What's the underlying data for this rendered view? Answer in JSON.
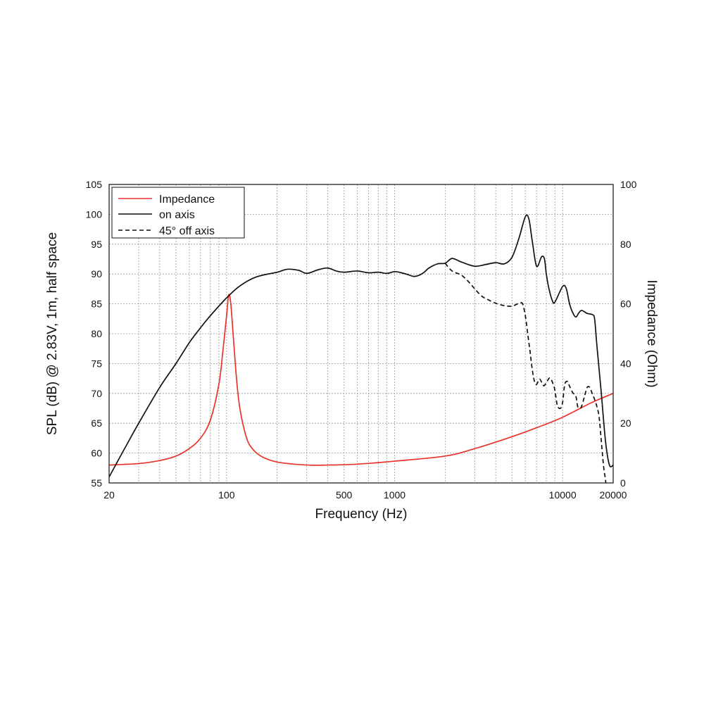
{
  "chart_data": {
    "type": "line",
    "xlabel": "Frequency (Hz)",
    "ylabel": "SPL (dB) @ 2.83V, 1m, half space",
    "y2label": "Impedance (Ohm)",
    "x_scale": "log",
    "xlim": [
      20,
      20000
    ],
    "ylim": [
      55,
      105
    ],
    "y2lim": [
      0,
      100
    ],
    "grid": true,
    "legend_position": "top-left",
    "x_tick_labels": [
      "20",
      "100",
      "500",
      "1000",
      "10000",
      "20000"
    ],
    "x_ticks": [
      20,
      100,
      500,
      1000,
      10000,
      20000
    ],
    "y_ticks": [
      55,
      60,
      65,
      70,
      75,
      80,
      85,
      90,
      95,
      100,
      105
    ],
    "y2_ticks": [
      0,
      20,
      40,
      60,
      80,
      100
    ],
    "series": [
      {
        "name": "Impedance",
        "axis": "right",
        "color": "#e8332a",
        "dash": "solid",
        "x": [
          20,
          30,
          40,
          50,
          60,
          70,
          80,
          90,
          95,
          100,
          103,
          106,
          110,
          115,
          120,
          130,
          140,
          160,
          200,
          300,
          400,
          600,
          1000,
          2000,
          3000,
          5000,
          7000,
          10000,
          15000,
          20000
        ],
        "y": [
          6,
          6.5,
          7.5,
          9,
          11.5,
          15,
          21,
          33,
          44,
          56,
          63,
          60,
          48,
          34,
          25,
          16,
          12,
          9,
          7,
          6,
          6,
          6.3,
          7.3,
          9,
          11.5,
          15.5,
          18.5,
          22,
          27,
          30
        ]
      },
      {
        "name": "on axis",
        "axis": "left",
        "color": "#111111",
        "dash": "solid",
        "x": [
          20,
          25,
          30,
          40,
          50,
          60,
          70,
          80,
          100,
          120,
          150,
          200,
          230,
          270,
          300,
          350,
          400,
          450,
          500,
          600,
          700,
          800,
          900,
          1000,
          1100,
          1200,
          1300,
          1400,
          1500,
          1600,
          1800,
          2000,
          2200,
          2500,
          3000,
          3500,
          4000,
          4500,
          5000,
          5500,
          6000,
          6300,
          6600,
          7000,
          7500,
          7800,
          8000,
          8300,
          8700,
          9000,
          10000,
          10500,
          11000,
          11500,
          12000,
          12500,
          13000,
          14000,
          15000,
          15500,
          16000,
          17000,
          18000,
          19000,
          20000
        ],
        "y": [
          56,
          61,
          65,
          71,
          75,
          78.5,
          81,
          83,
          86,
          88,
          89.5,
          90.3,
          90.8,
          90.6,
          90.1,
          90.7,
          91,
          90.5,
          90.3,
          90.5,
          90.2,
          90.3,
          90.1,
          90.4,
          90.2,
          89.9,
          89.6,
          89.8,
          90.3,
          91,
          91.7,
          91.8,
          92.6,
          92,
          91.3,
          91.6,
          91.9,
          91.7,
          92.8,
          96,
          99.6,
          99.2,
          95.5,
          91.3,
          92.9,
          92.5,
          90,
          87.5,
          85.5,
          85.3,
          87.9,
          87.6,
          85,
          83.5,
          82.8,
          83.5,
          83.9,
          83.4,
          83.2,
          82.5,
          78,
          70,
          62,
          58,
          58
        ]
      },
      {
        "name": "45° off axis",
        "axis": "left",
        "color": "#111111",
        "dash": "dashed",
        "x": [
          2000,
          2200,
          2500,
          2800,
          3000,
          3300,
          3600,
          4000,
          4500,
          5000,
          5300,
          5600,
          5800,
          6000,
          6200,
          6400,
          6600,
          6800,
          7000,
          7300,
          7700,
          8000,
          8400,
          8800,
          9000,
          9300,
          9700,
          10000,
          10300,
          10700,
          11000,
          11500,
          12000,
          12300,
          12700,
          13000,
          13500,
          14000,
          14500,
          15000,
          15500,
          16000,
          16500,
          17000,
          17500,
          18000,
          18500
        ],
        "y": [
          91.8,
          90.5,
          89.8,
          88.5,
          87.5,
          86.3,
          85.7,
          85.1,
          84.7,
          84.6,
          84.9,
          85.2,
          84.9,
          83,
          80,
          77,
          74,
          72,
          71.5,
          72.4,
          71.3,
          71.8,
          72.6,
          71.5,
          70.5,
          68,
          67.5,
          68.5,
          71.5,
          72,
          71.2,
          70.1,
          69.5,
          67.8,
          67.5,
          67.9,
          69.5,
          71,
          71,
          70,
          69,
          67.8,
          66,
          62,
          58,
          55.5,
          53
        ]
      }
    ]
  }
}
